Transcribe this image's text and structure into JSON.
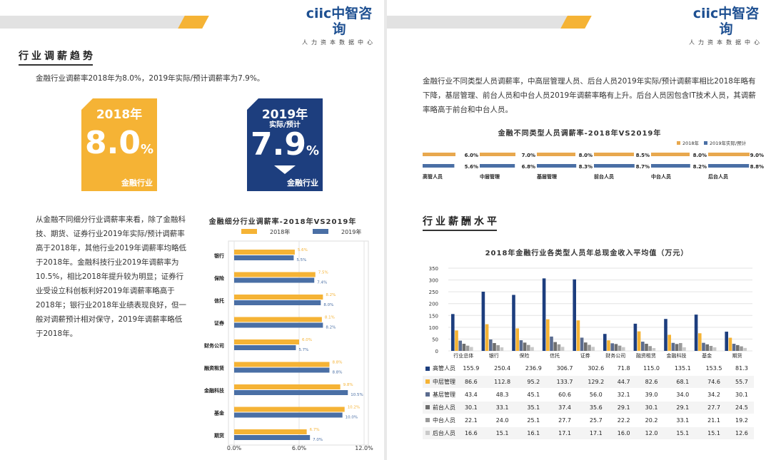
{
  "brand": {
    "logo_cn": "ciic中智咨询",
    "logo_sub": "人力资本数据中心"
  },
  "colors": {
    "yellow": "#F5B335",
    "blue": "#4A6FA5",
    "navy": "#1D3E7E"
  },
  "left": {
    "heading": "行业调薪趋势",
    "intro": "金融行业调薪率2018年为8.0%，2019年实际/预计调薪率为7.9%。",
    "card2018": {
      "year": "2018年",
      "value": "8.0",
      "pct": "%",
      "label": "金融行业"
    },
    "card2019": {
      "year": "2019年",
      "sub": "实际/预计",
      "value": "7.9",
      "pct": "%",
      "label": "金融行业"
    },
    "body": "从金融不同细分行业调薪率来看，除了金融科技、期货、证券行业2019年实际/预计调薪率高于2018年，其他行业2019年调薪率均略低于2018年。金融科技行业2019年调薪率为10.5%，相比2018年提升较为明显；证券行业受设立科创板利好2019年调薪率略高于2018年；银行业2018年业绩表现良好，但一般对调薪预计相对保守，2019年调薪率略低于2018年。"
  },
  "right": {
    "body": "金融行业不同类型人员调薪率，中高层管理人员、后台人员2019年实际/预计调薪率相比2018年略有下降，基层管理、前台人员和中台人员2019年调薪率略有上升。后台人员因包含IT技术人员，其调薪率略高于前台和中台人员。",
    "heading": "行业薪酬水平"
  },
  "chart_data": [
    {
      "type": "bar",
      "orientation": "horizontal",
      "title": "金融细分行业调薪率-2018年VS2019年",
      "categories": [
        "银行",
        "保险",
        "信托",
        "证券",
        "财务公司",
        "融资租赁",
        "金融科技",
        "基金",
        "期货"
      ],
      "series": [
        {
          "name": "2018年",
          "color": "#F5B335",
          "values": [
            5.6,
            7.5,
            8.2,
            8.1,
            6.0,
            8.8,
            9.8,
            10.2,
            6.7
          ]
        },
        {
          "name": "2019年",
          "color": "#4A6FA5",
          "values": [
            5.5,
            7.4,
            8.0,
            8.2,
            5.7,
            8.8,
            10.5,
            10.0,
            7.0
          ]
        }
      ],
      "xlim": [
        0,
        12
      ],
      "xticks": [
        "0.0%",
        "6.0%",
        "12.0%"
      ],
      "value_labels": {
        "2018年": [
          "5.6%",
          "7.5%",
          "8.2%",
          "8.1%",
          "6.0%",
          "8.8%",
          "9.8%",
          "10.2%",
          "6.7%"
        ],
        "2019年": [
          "5.5%",
          "7.4%",
          "8.0%",
          "8.2%",
          "5.7%",
          "8.8%",
          "10.5%",
          "10.0%",
          "7.0%"
        ]
      },
      "grid": true
    },
    {
      "type": "bar",
      "title": "金融不同类型人员调薪率-2018年VS2019年",
      "categories": [
        "高管人员",
        "中层管理",
        "基层管理",
        "前台人员",
        "中台人员",
        "后台人员"
      ],
      "series": [
        {
          "name": "2018年",
          "color": "#E8A84E",
          "values": [
            6.0,
            7.0,
            8.0,
            8.5,
            8.0,
            9.0
          ]
        },
        {
          "name": "2019年实际/预计",
          "color": "#4A6FA5",
          "values": [
            5.6,
            6.8,
            8.3,
            8.7,
            8.2,
            8.8
          ]
        }
      ],
      "value_labels": {
        "2018年": [
          "6.0%",
          "7.0%",
          "8.0%",
          "8.5%",
          "8.0%",
          "9.0%"
        ],
        "2019年实际/预计": [
          "5.6%",
          "6.8%",
          "8.3%",
          "8.7%",
          "8.2%",
          "8.8%"
        ]
      }
    },
    {
      "type": "bar",
      "title": "2018年金融行业各类型人员年总现金收入平均值（万元）",
      "categories": [
        "行业总体",
        "银行",
        "保险",
        "信托",
        "证券",
        "财务公司",
        "融资租赁",
        "金融科技",
        "基金",
        "期货"
      ],
      "series": [
        {
          "name": "高管人员",
          "color": "#1D3E7E",
          "values": [
            155.9,
            250.4,
            236.9,
            306.7,
            302.6,
            71.8,
            115.0,
            135.1,
            153.5,
            81.3
          ]
        },
        {
          "name": "中层管理",
          "color": "#F5B335",
          "values": [
            86.6,
            112.8,
            95.2,
            133.7,
            129.2,
            44.7,
            82.6,
            68.1,
            74.6,
            55.7
          ]
        },
        {
          "name": "基层管理",
          "color": "#5B6C8F",
          "values": [
            43.4,
            48.3,
            45.1,
            60.6,
            56.0,
            32.1,
            39.0,
            34.0,
            34.2,
            30.1
          ]
        },
        {
          "name": "前台人员",
          "color": "#6E6E6E",
          "values": [
            30.1,
            33.1,
            35.1,
            37.4,
            35.6,
            29.1,
            30.1,
            29.1,
            27.7,
            24.5
          ]
        },
        {
          "name": "中台人员",
          "color": "#9A9A9A",
          "values": [
            22.1,
            24.0,
            25.1,
            27.7,
            25.7,
            22.2,
            20.2,
            33.1,
            21.1,
            19.2
          ]
        },
        {
          "name": "后台人员",
          "color": "#C9C9C9",
          "values": [
            16.6,
            15.1,
            16.1,
            17.1,
            17.1,
            16.0,
            12.0,
            15.1,
            15.1,
            12.6
          ]
        }
      ],
      "ylim": [
        0,
        350
      ],
      "yticks": [
        0,
        50,
        100,
        150,
        200,
        250,
        300,
        350
      ],
      "grid": true,
      "table_rows": [
        {
          "label": "高管人员",
          "cells": [
            "155.9",
            "250.4",
            "236.9",
            "306.7",
            "302.6",
            "71.8",
            "115.0",
            "135.1",
            "153.5",
            "81.3"
          ]
        },
        {
          "label": "中层管理",
          "cells": [
            "86.6",
            "112.8",
            "95.2",
            "133.7",
            "129.2",
            "44.7",
            "82.6",
            "68.1",
            "74.6",
            "55.7"
          ]
        },
        {
          "label": "基层管理",
          "cells": [
            "43.4",
            "48.3",
            "45.1",
            "60.6",
            "56.0",
            "32.1",
            "39.0",
            "34.0",
            "34.2",
            "30.1"
          ]
        },
        {
          "label": "前台人员",
          "cells": [
            "30.1",
            "33.1",
            "35.1",
            "37.4",
            "35.6",
            "29.1",
            "30.1",
            "29.1",
            "27.7",
            "24.5"
          ]
        },
        {
          "label": "中台人员",
          "cells": [
            "22.1",
            "24.0",
            "25.1",
            "27.7",
            "25.7",
            "22.2",
            "20.2",
            "33.1",
            "21.1",
            "19.2"
          ]
        },
        {
          "label": "后台人员",
          "cells": [
            "16.6",
            "15.1",
            "16.1",
            "17.1",
            "17.1",
            "16.0",
            "12.0",
            "15.1",
            "15.1",
            "12.6"
          ]
        }
      ]
    }
  ]
}
